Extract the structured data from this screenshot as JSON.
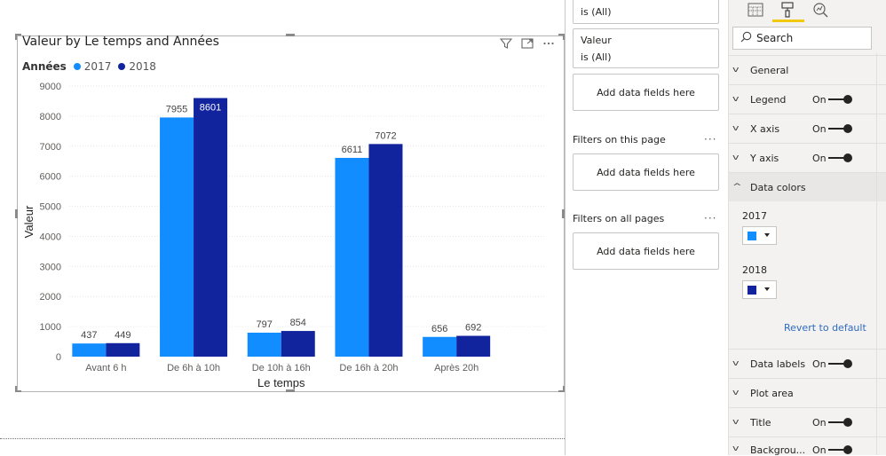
{
  "visual": {
    "title": "Valeur by Le temps and Années",
    "header_icons": [
      "filter-icon",
      "focus-mode-icon",
      "more-options-icon"
    ],
    "legend": {
      "title": "Années",
      "entries": [
        {
          "name": "2017",
          "color": "#118dff"
        },
        {
          "name": "2018",
          "color": "#12239e"
        }
      ]
    }
  },
  "chart_data": {
    "type": "bar",
    "title": "Valeur by Le temps and Années",
    "xlabel": "Le temps",
    "ylabel": "Valeur",
    "categories": [
      "Avant 6 h",
      "De 6h à 10h",
      "De 10h à 16h",
      "De 16h à 20h",
      "Après 20h"
    ],
    "series": [
      {
        "name": "2017",
        "color": "#118dff",
        "values": [
          437,
          7955,
          797,
          6611,
          656
        ]
      },
      {
        "name": "2018",
        "color": "#12239e",
        "values": [
          449,
          8601,
          854,
          7072,
          692
        ]
      }
    ],
    "ylim": [
      0,
      9000
    ],
    "yticks": [
      0,
      1000,
      2000,
      3000,
      4000,
      5000,
      6000,
      7000,
      8000,
      9000
    ],
    "grid": true,
    "legend_position": "top-left",
    "data_labels": true
  },
  "filters_pane": {
    "top_filter_value": "is (All)",
    "valeur_filter": {
      "field": "Valeur",
      "value": "is (All)"
    },
    "add_fields_label": "Add data fields here",
    "page_filters_title": "Filters on this page",
    "page_add_label": "Add data fields here",
    "all_pages_title": "Filters on all pages",
    "all_pages_add_label": "Add data fields here",
    "more_label": "···"
  },
  "format_pane": {
    "tabs": [
      "fields-icon",
      "format-paint-icon",
      "analytics-icon"
    ],
    "active_tab_color": "#f2c811",
    "search_placeholder": "Search",
    "sections": {
      "general": "General",
      "legend": {
        "label": "Legend",
        "state": "On"
      },
      "x_axis": {
        "label": "X axis",
        "state": "On"
      },
      "y_axis": {
        "label": "Y axis",
        "state": "On"
      },
      "data_colors": "Data colors",
      "data_labels": {
        "label": "Data labels",
        "state": "On"
      },
      "plot_area": "Plot area",
      "title": {
        "label": "Title",
        "state": "On"
      },
      "background": {
        "label": "Backgrou...",
        "state": "On"
      }
    },
    "data_colors": {
      "items": [
        {
          "name": "2017",
          "color": "#118dff"
        },
        {
          "name": "2018",
          "color": "#12239e"
        }
      ],
      "revert_label": "Revert to default"
    }
  }
}
